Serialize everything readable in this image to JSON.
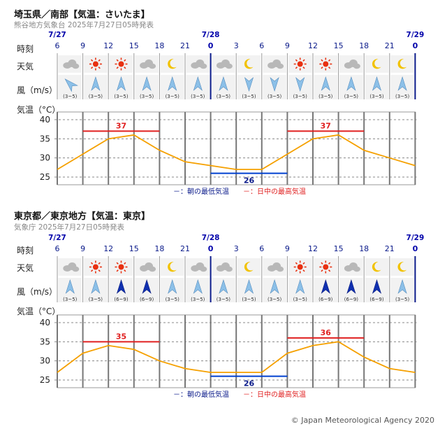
{
  "copyright": "© Japan Meteorological Agency 2020",
  "row_labels": {
    "time": "時刻",
    "weather": "天気",
    "wind": "風（m/s）",
    "temp": "気温（°C）"
  },
  "colors": {
    "min_line": "#0040d0",
    "max_line": "#e02020",
    "temp_line": "#f5a000",
    "date": "#0000aa"
  },
  "chart_data": [
    {
      "type": "line",
      "title": "埼玉県／南部【気温：さいたま】",
      "subtitle": "熊谷地方気象台 2025年7月27日05時発表",
      "dates": [
        {
          "label": "7/27",
          "col": 0
        },
        {
          "label": "7/28",
          "col": 6
        },
        {
          "label": "7/29",
          "col": 14
        }
      ],
      "hours": [
        "6",
        "9",
        "12",
        "15",
        "18",
        "21",
        "0",
        "3",
        "6",
        "9",
        "12",
        "15",
        "18",
        "21",
        "0"
      ],
      "weather_icons": [
        "cloud-icon",
        "sun-icon",
        "sun-icon",
        "cloud-icon",
        "moon-icon",
        "cloud-icon",
        "cloud-icon",
        "moon-icon",
        "cloud-icon",
        "sun-icon",
        "sun-icon",
        "cloud-icon",
        "moon-icon",
        "moon-icon"
      ],
      "wind_arrows": [
        "arrow-ne",
        "arrow-n",
        "arrow-n",
        "arrow-n",
        "arrow-n",
        "arrow-n",
        "arrow-n",
        "arrow-s",
        "arrow-s",
        "arrow-s",
        "arrow-n",
        "arrow-n",
        "arrow-n",
        "arrow-n"
      ],
      "wind_strength": [
        "light",
        "light",
        "light",
        "light",
        "light",
        "light",
        "light",
        "light",
        "light",
        "light",
        "light",
        "light",
        "light",
        "light"
      ],
      "wind_labels": [
        "(3~5)",
        "(3~5)",
        "(3~5)",
        "(3~5)",
        "(3~5)",
        "(3~5)",
        "(3~5)",
        "(3~5)",
        "(3~5)",
        "(3~5)",
        "(3~5)",
        "(3~5)",
        "(3~5)",
        "(3~5)"
      ],
      "temps": [
        27,
        31,
        35,
        36,
        32,
        29,
        28,
        27,
        27,
        31,
        35,
        36,
        32,
        30,
        28
      ],
      "ylim": [
        23,
        42
      ],
      "yticks": [
        25,
        30,
        35,
        40
      ],
      "max_bars": [
        {
          "value": 37,
          "from": 1,
          "to": 4,
          "label": "37"
        },
        {
          "value": 37,
          "from": 9,
          "to": 12,
          "label": "37"
        }
      ],
      "min_bars": [
        {
          "value": 26,
          "from": 6,
          "to": 9,
          "label": "26"
        }
      ],
      "legend": {
        "min": "－：朝の最低気温",
        "max": "－：日中の最高気温"
      }
    },
    {
      "type": "line",
      "title": "東京都／東京地方【気温：東京】",
      "subtitle": "気象庁 2025年7月27日05時発表",
      "dates": [
        {
          "label": "7/27",
          "col": 0
        },
        {
          "label": "7/28",
          "col": 6
        },
        {
          "label": "7/29",
          "col": 14
        }
      ],
      "hours": [
        "6",
        "9",
        "12",
        "15",
        "18",
        "21",
        "0",
        "3",
        "6",
        "9",
        "12",
        "15",
        "18",
        "21",
        "0"
      ],
      "weather_icons": [
        "cloud-icon",
        "sun-icon",
        "sun-icon",
        "cloud-icon",
        "moon-icon",
        "cloud-icon",
        "cloud-icon",
        "moon-icon",
        "cloud-icon",
        "sun-icon",
        "sun-icon",
        "cloud-icon",
        "moon-icon",
        "moon-icon"
      ],
      "wind_arrows": [
        "arrow-n",
        "arrow-n",
        "arrow-n",
        "arrow-n",
        "arrow-n",
        "arrow-n",
        "arrow-n",
        "arrow-n",
        "arrow-n",
        "arrow-n",
        "arrow-n",
        "arrow-n",
        "arrow-n",
        "arrow-n"
      ],
      "wind_strength": [
        "light",
        "light",
        "strong",
        "strong",
        "light",
        "light",
        "light",
        "light",
        "light",
        "light",
        "strong",
        "strong",
        "strong",
        "light"
      ],
      "wind_labels": [
        "(3~5)",
        "(3~5)",
        "(6~9)",
        "(6~9)",
        "(3~5)",
        "(3~5)",
        "(3~5)",
        "(3~5)",
        "(3~5)",
        "(3~5)",
        "(6~9)",
        "(6~9)",
        "(6~9)",
        "(3~5)"
      ],
      "temps": [
        27,
        32,
        34,
        33,
        30,
        28,
        27,
        27,
        27,
        32,
        34,
        35,
        31,
        28,
        27
      ],
      "ylim": [
        23,
        42
      ],
      "yticks": [
        25,
        30,
        35,
        40
      ],
      "max_bars": [
        {
          "value": 35,
          "from": 1,
          "to": 4,
          "label": "35"
        },
        {
          "value": 36,
          "from": 9,
          "to": 12,
          "label": "36"
        }
      ],
      "min_bars": [
        {
          "value": 26,
          "from": 6,
          "to": 9,
          "label": "26"
        }
      ],
      "legend": {
        "min": "－：朝の最低気温",
        "max": "－：日中の最高気温"
      }
    }
  ]
}
